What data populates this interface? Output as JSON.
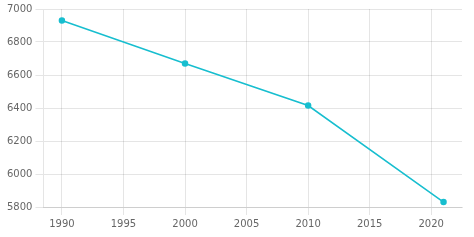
{
  "chart_data": {
    "type": "line",
    "x": [
      1990,
      2000,
      2010,
      2021
    ],
    "values": [
      6930,
      6670,
      6415,
      5830
    ],
    "color": "#17becf",
    "marker": "circle",
    "xlim": [
      1988.5,
      2022.5
    ],
    "xticks": [
      1990,
      1995,
      2000,
      2005,
      2010,
      2015,
      2020
    ],
    "ylim": [
      5800,
      7000
    ],
    "yticks": [
      5800,
      6000,
      6200,
      6400,
      6600,
      6800,
      7000
    ],
    "grid": true
  }
}
